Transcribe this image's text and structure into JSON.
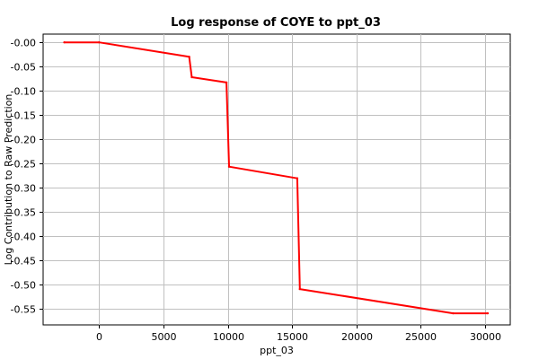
{
  "chart_data": {
    "type": "line",
    "title": "Log response of COYE to ppt_03",
    "xlabel": "ppt_03",
    "ylabel": "Log Contribution to Raw Prediction",
    "xlim": [
      -4350,
      31950
    ],
    "ylim": [
      -0.584,
      0.017
    ],
    "xticks": [
      0,
      5000,
      10000,
      15000,
      20000,
      25000,
      30000
    ],
    "xtick_labels": [
      "0",
      "5000",
      "10000",
      "15000",
      "20000",
      "25000",
      "30000"
    ],
    "yticks": [
      0.0,
      -0.05,
      -0.1,
      -0.15,
      -0.2,
      -0.25,
      -0.3,
      -0.35,
      -0.4,
      -0.45,
      -0.5,
      -0.55
    ],
    "ytick_labels": [
      "-0.00",
      "-0.05",
      "-0.10",
      "-0.15",
      "-0.20",
      "-0.25",
      "-0.30",
      "-0.35",
      "-0.40",
      "-0.45",
      "-0.50",
      "-0.55"
    ],
    "grid": true,
    "series": [
      {
        "color": "#ff0000",
        "x": [
          -2700,
          0,
          7000,
          7200,
          9900,
          10100,
          15400,
          15600,
          27500,
          30200
        ],
        "y": [
          0.0,
          0.0,
          -0.03,
          -0.072,
          -0.083,
          -0.257,
          -0.281,
          -0.51,
          -0.56,
          -0.56
        ]
      }
    ]
  }
}
